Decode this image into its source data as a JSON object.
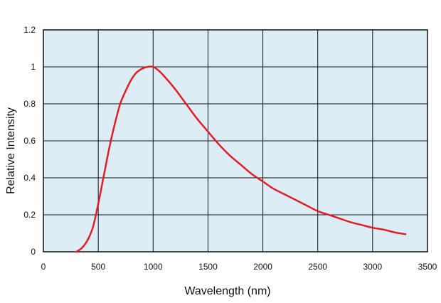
{
  "chart_data": {
    "type": "line",
    "title": "",
    "xlabel": "Wavelength (nm)",
    "ylabel": "Relative Intensity",
    "xlim": [
      0,
      3500
    ],
    "ylim": [
      0,
      1.2
    ],
    "x_ticks": [
      "0",
      "500",
      "1000",
      "1500",
      "2000",
      "2500",
      "3000",
      "3500"
    ],
    "y_ticks": [
      "0",
      "0.2",
      "0.4",
      "0.6",
      "0.8",
      "1",
      "1.2"
    ],
    "x_tick_values": [
      0,
      500,
      1000,
      1500,
      2000,
      2500,
      3000,
      3500
    ],
    "y_tick_values": [
      0,
      0.2,
      0.4,
      0.6,
      0.8,
      1.0,
      1.2
    ],
    "grid": true,
    "legend": "none",
    "colors": {
      "plot_background": "#dcedf5",
      "grid": "#111111",
      "line": "#e31d26",
      "text": "#111111"
    },
    "series": [
      {
        "x": [
          300,
          350,
          400,
          450,
          500,
          550,
          600,
          650,
          700,
          750,
          800,
          850,
          900,
          950,
          1000,
          1050,
          1100,
          1200,
          1300,
          1400,
          1500,
          1600,
          1700,
          1800,
          1900,
          2000,
          2100,
          2200,
          2300,
          2400,
          2500,
          2600,
          2700,
          2800,
          2900,
          3000,
          3100,
          3200,
          3300
        ],
        "y": [
          0.0,
          0.02,
          0.06,
          0.13,
          0.26,
          0.41,
          0.56,
          0.69,
          0.8,
          0.87,
          0.93,
          0.97,
          0.99,
          1.0,
          1.0,
          0.98,
          0.95,
          0.88,
          0.8,
          0.72,
          0.65,
          0.58,
          0.52,
          0.47,
          0.42,
          0.38,
          0.34,
          0.31,
          0.28,
          0.25,
          0.22,
          0.2,
          0.18,
          0.16,
          0.145,
          0.13,
          0.12,
          0.105,
          0.095
        ]
      }
    ]
  }
}
